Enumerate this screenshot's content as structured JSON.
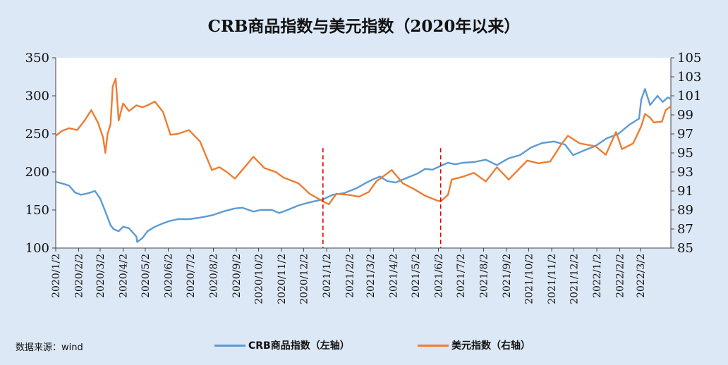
{
  "title": "CRB商品指数与美元指数（2020年以来）",
  "source": "数据来源：wind",
  "legend": [
    {
      "label": "CRB商品指数（左轴）",
      "color": "#5b9bd5"
    },
    {
      "label": "美元指数（右轴）",
      "color": "#ed7d31"
    }
  ],
  "chart_data": {
    "type": "line",
    "x_tick_labels": [
      "2020/1/2",
      "2020/2/2",
      "2020/3/2",
      "2020/4/2",
      "2020/5/2",
      "2020/6/2",
      "2020/7/2",
      "2020/8/2",
      "2020/9/2",
      "2020/10/2",
      "2020/11/2",
      "2020/12/2",
      "2021/1/2",
      "2021/2/2",
      "2021/3/2",
      "2021/4/2",
      "2021/5/2",
      "2021/6/2",
      "2021/7/2",
      "2021/8/2",
      "2021/9/2",
      "2021/10/2",
      "2021/11/2",
      "2021/12/2",
      "2022/1/2",
      "2022/2/2",
      "2022/3/2"
    ],
    "x_range": [
      "2020/1/2",
      "2022/4/12"
    ],
    "y_left": {
      "min": 100,
      "max": 350,
      "ticks": [
        100,
        150,
        200,
        250,
        300,
        350
      ]
    },
    "y_right": {
      "min": 85,
      "max": 105,
      "ticks": [
        85,
        87,
        89,
        91,
        93,
        95,
        97,
        99,
        101,
        103,
        105
      ]
    },
    "grid": false,
    "legend_position": "bottom",
    "vertical_markers": [
      {
        "date": "2020/12/28",
        "color": "#e00000",
        "style": "dashed"
      },
      {
        "date": "2021/6/5",
        "color": "#e00000",
        "style": "dashed"
      }
    ],
    "series": [
      {
        "name": "CRB商品指数（左轴）",
        "axis": "left",
        "color": "#5b9bd5",
        "points": [
          [
            "2020/1/2",
            187
          ],
          [
            "2020/1/10",
            185
          ],
          [
            "2020/1/20",
            182
          ],
          [
            "2020/1/28",
            173
          ],
          [
            "2020/2/5",
            170
          ],
          [
            "2020/2/15",
            172
          ],
          [
            "2020/2/24",
            175
          ],
          [
            "2020/3/2",
            165
          ],
          [
            "2020/3/9",
            148
          ],
          [
            "2020/3/16",
            130
          ],
          [
            "2020/3/20",
            125
          ],
          [
            "2020/3/27",
            122
          ],
          [
            "2020/4/2",
            128
          ],
          [
            "2020/4/10",
            126
          ],
          [
            "2020/4/20",
            115
          ],
          [
            "2020/4/21",
            108
          ],
          [
            "2020/4/28",
            113
          ],
          [
            "2020/5/5",
            122
          ],
          [
            "2020/5/15",
            128
          ],
          [
            "2020/5/25",
            132
          ],
          [
            "2020/6/2",
            135
          ],
          [
            "2020/6/15",
            138
          ],
          [
            "2020/6/30",
            138
          ],
          [
            "2020/7/15",
            140
          ],
          [
            "2020/7/31",
            143
          ],
          [
            "2020/8/15",
            148
          ],
          [
            "2020/8/31",
            152
          ],
          [
            "2020/9/10",
            153
          ],
          [
            "2020/9/25",
            148
          ],
          [
            "2020/10/5",
            150
          ],
          [
            "2020/10/20",
            150
          ],
          [
            "2020/10/30",
            146
          ],
          [
            "2020/11/10",
            150
          ],
          [
            "2020/11/25",
            156
          ],
          [
            "2020/12/10",
            160
          ],
          [
            "2020/12/28",
            164
          ],
          [
            "2021/1/10",
            170
          ],
          [
            "2021/1/25",
            172
          ],
          [
            "2021/2/10",
            178
          ],
          [
            "2021/2/25",
            186
          ],
          [
            "2021/3/5",
            190
          ],
          [
            "2021/3/15",
            194
          ],
          [
            "2021/3/25",
            188
          ],
          [
            "2021/4/5",
            186
          ],
          [
            "2021/4/20",
            192
          ],
          [
            "2021/5/5",
            198
          ],
          [
            "2021/5/15",
            204
          ],
          [
            "2021/5/25",
            203
          ],
          [
            "2021/6/5",
            208
          ],
          [
            "2021/6/15",
            212
          ],
          [
            "2021/6/25",
            210
          ],
          [
            "2021/7/5",
            212
          ],
          [
            "2021/7/20",
            213
          ],
          [
            "2021/8/5",
            216
          ],
          [
            "2021/8/20",
            209
          ],
          [
            "2021/9/5",
            218
          ],
          [
            "2021/9/20",
            222
          ],
          [
            "2021/10/5",
            232
          ],
          [
            "2021/10/20",
            238
          ],
          [
            "2021/11/5",
            240
          ],
          [
            "2021/11/20",
            236
          ],
          [
            "2021/12/1",
            222
          ],
          [
            "2021/12/15",
            228
          ],
          [
            "2021/12/31",
            234
          ],
          [
            "2022/1/15",
            244
          ],
          [
            "2022/1/31",
            250
          ],
          [
            "2022/2/15",
            262
          ],
          [
            "2022/2/28",
            270
          ],
          [
            "2022/3/3",
            295
          ],
          [
            "2022/3/8",
            309
          ],
          [
            "2022/3/15",
            288
          ],
          [
            "2022/3/25",
            300
          ],
          [
            "2022/4/1",
            292
          ],
          [
            "2022/4/8",
            298
          ],
          [
            "2022/4/12",
            296
          ]
        ]
      },
      {
        "name": "美元指数（右轴）",
        "axis": "right",
        "color": "#ed7d31",
        "points": [
          [
            "2020/1/2",
            96.8
          ],
          [
            "2020/1/10",
            97.3
          ],
          [
            "2020/1/20",
            97.6
          ],
          [
            "2020/1/31",
            97.4
          ],
          [
            "2020/2/10",
            98.4
          ],
          [
            "2020/2/19",
            99.5
          ],
          [
            "2020/2/28",
            98.2
          ],
          [
            "2020/3/6",
            96.6
          ],
          [
            "2020/3/9",
            95.0
          ],
          [
            "2020/3/12",
            97.0
          ],
          [
            "2020/3/16",
            98.0
          ],
          [
            "2020/3/19",
            102.0
          ],
          [
            "2020/3/23",
            102.8
          ],
          [
            "2020/3/27",
            98.4
          ],
          [
            "2020/4/2",
            100.2
          ],
          [
            "2020/4/10",
            99.4
          ],
          [
            "2020/4/20",
            100.0
          ],
          [
            "2020/4/28",
            99.8
          ],
          [
            "2020/5/5",
            100.0
          ],
          [
            "2020/5/15",
            100.4
          ],
          [
            "2020/5/26",
            99.3
          ],
          [
            "2020/6/5",
            96.9
          ],
          [
            "2020/6/15",
            97.0
          ],
          [
            "2020/6/30",
            97.4
          ],
          [
            "2020/7/15",
            96.2
          ],
          [
            "2020/7/31",
            93.2
          ],
          [
            "2020/8/10",
            93.5
          ],
          [
            "2020/8/20",
            93.0
          ],
          [
            "2020/8/31",
            92.3
          ],
          [
            "2020/9/10",
            93.2
          ],
          [
            "2020/9/25",
            94.6
          ],
          [
            "2020/10/10",
            93.4
          ],
          [
            "2020/10/25",
            93.0
          ],
          [
            "2020/11/5",
            92.4
          ],
          [
            "2020/11/25",
            91.8
          ],
          [
            "2020/12/10",
            90.7
          ],
          [
            "2020/12/28",
            89.9
          ],
          [
            "2021/1/5",
            89.6
          ],
          [
            "2021/1/15",
            90.7
          ],
          [
            "2021/1/31",
            90.6
          ],
          [
            "2021/2/15",
            90.4
          ],
          [
            "2021/2/28",
            90.9
          ],
          [
            "2021/3/10",
            92.0
          ],
          [
            "2021/3/31",
            93.2
          ],
          [
            "2021/4/15",
            91.8
          ],
          [
            "2021/4/30",
            91.2
          ],
          [
            "2021/5/15",
            90.5
          ],
          [
            "2021/5/31",
            90.0
          ],
          [
            "2021/6/5",
            89.9
          ],
          [
            "2021/6/15",
            90.6
          ],
          [
            "2021/6/20",
            92.2
          ],
          [
            "2021/7/5",
            92.5
          ],
          [
            "2021/7/20",
            92.9
          ],
          [
            "2021/8/5",
            92.0
          ],
          [
            "2021/8/20",
            93.5
          ],
          [
            "2021/9/5",
            92.2
          ],
          [
            "2021/9/30",
            94.2
          ],
          [
            "2021/10/15",
            93.9
          ],
          [
            "2021/10/31",
            94.1
          ],
          [
            "2021/11/15",
            95.9
          ],
          [
            "2021/11/24",
            96.8
          ],
          [
            "2021/12/10",
            96.0
          ],
          [
            "2021/12/31",
            95.7
          ],
          [
            "2022/1/14",
            94.8
          ],
          [
            "2022/1/28",
            97.2
          ],
          [
            "2022/2/5",
            95.4
          ],
          [
            "2022/2/20",
            96.0
          ],
          [
            "2022/3/3",
            97.8
          ],
          [
            "2022/3/8",
            99.1
          ],
          [
            "2022/3/15",
            98.7
          ],
          [
            "2022/3/20",
            98.2
          ],
          [
            "2022/3/31",
            98.3
          ],
          [
            "2022/4/5",
            99.5
          ],
          [
            "2022/4/12",
            99.9
          ]
        ]
      }
    ]
  }
}
